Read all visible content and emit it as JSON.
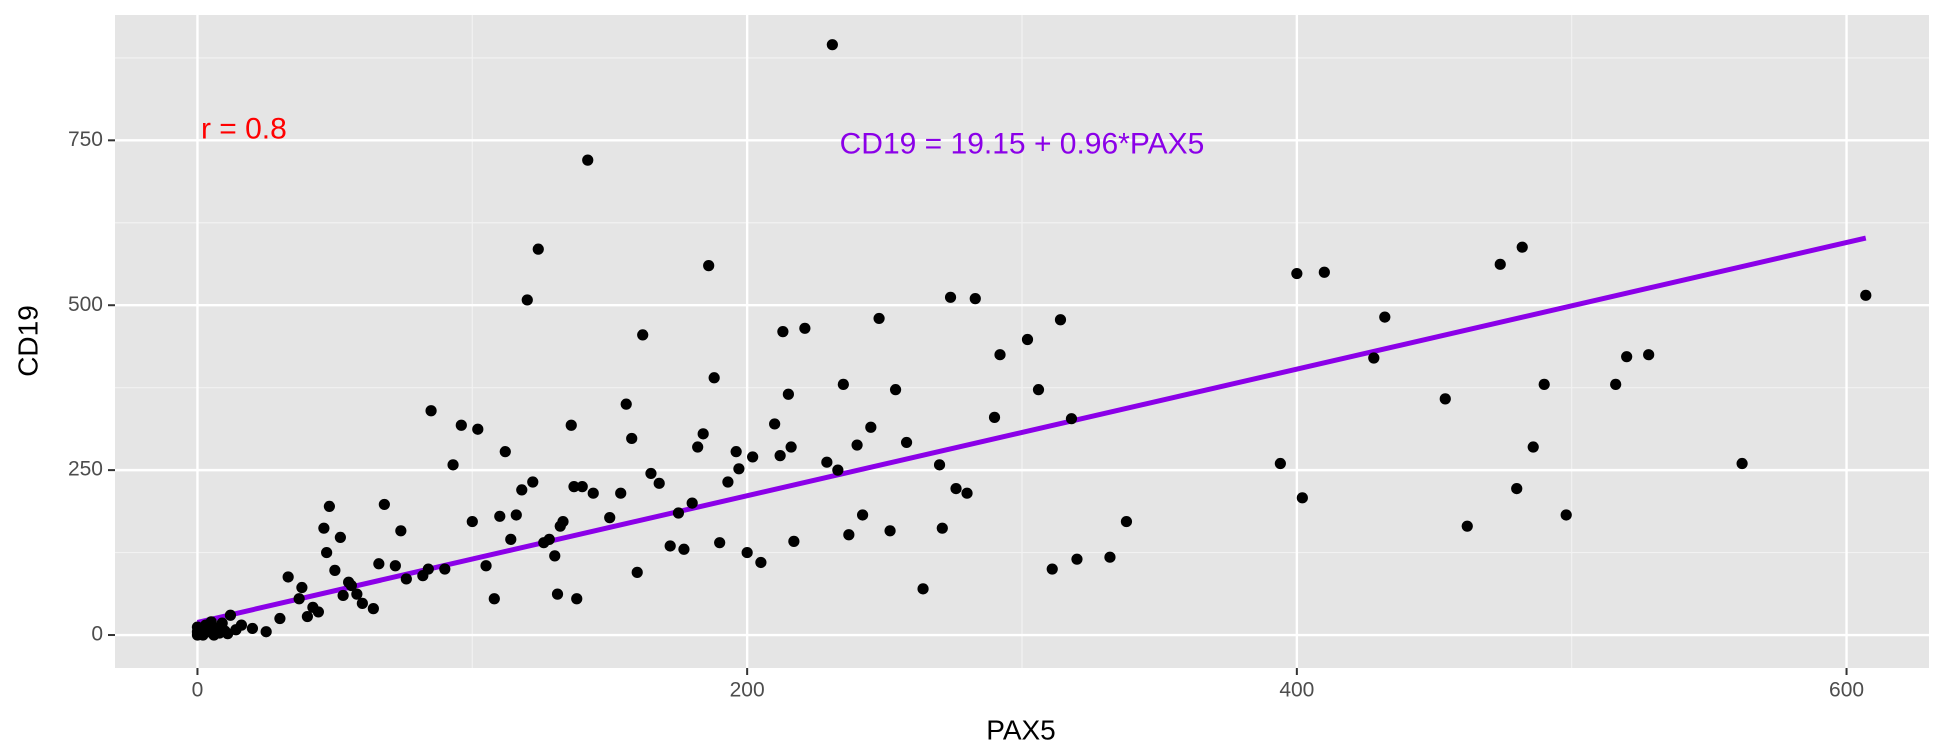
{
  "chart_data": {
    "type": "scatter",
    "xlabel": "PAX5",
    "ylabel": "CD19",
    "xlim": [
      -30,
      630
    ],
    "ylim": [
      -50,
      940
    ],
    "x_ticks": [
      0,
      200,
      400,
      600
    ],
    "y_ticks": [
      0,
      250,
      500,
      750
    ],
    "x_tick_labels": [
      "0",
      "200",
      "400",
      "600"
    ],
    "y_tick_labels": [
      "0",
      "250",
      "500",
      "750"
    ],
    "grid": true,
    "background": "#e5e5e5",
    "point_color": "#000000",
    "annotations": {
      "correlation": {
        "text": "r = 0.8",
        "color": "#ff0000",
        "x": 10,
        "y": 765
      },
      "equation": {
        "text": "CD19 = 19.15 + 0.96*PAX5",
        "color": "#8b00e8",
        "x": 300,
        "y": 742
      }
    },
    "regression": {
      "intercept": 19.15,
      "slope": 0.96,
      "x_range": [
        0,
        607
      ],
      "color": "#8b00e8"
    },
    "points": [
      [
        0,
        0
      ],
      [
        0,
        5
      ],
      [
        0,
        12
      ],
      [
        1,
        3
      ],
      [
        2,
        0
      ],
      [
        2,
        8
      ],
      [
        3,
        15
      ],
      [
        4,
        5
      ],
      [
        5,
        20
      ],
      [
        6,
        0
      ],
      [
        7,
        10
      ],
      [
        8,
        3
      ],
      [
        9,
        18
      ],
      [
        10,
        6
      ],
      [
        11,
        2
      ],
      [
        12,
        30
      ],
      [
        14,
        8
      ],
      [
        16,
        15
      ],
      [
        20,
        10
      ],
      [
        25,
        5
      ],
      [
        30,
        25
      ],
      [
        33,
        88
      ],
      [
        37,
        55
      ],
      [
        38,
        72
      ],
      [
        40,
        28
      ],
      [
        42,
        42
      ],
      [
        44,
        35
      ],
      [
        46,
        162
      ],
      [
        47,
        125
      ],
      [
        48,
        195
      ],
      [
        50,
        98
      ],
      [
        52,
        148
      ],
      [
        53,
        60
      ],
      [
        55,
        80
      ],
      [
        56,
        75
      ],
      [
        58,
        62
      ],
      [
        60,
        48
      ],
      [
        64,
        40
      ],
      [
        66,
        108
      ],
      [
        68,
        198
      ],
      [
        72,
        105
      ],
      [
        74,
        158
      ],
      [
        76,
        85
      ],
      [
        82,
        90
      ],
      [
        84,
        100
      ],
      [
        85,
        340
      ],
      [
        90,
        100
      ],
      [
        93,
        258
      ],
      [
        96,
        318
      ],
      [
        100,
        172
      ],
      [
        102,
        312
      ],
      [
        105,
        105
      ],
      [
        108,
        55
      ],
      [
        110,
        180
      ],
      [
        112,
        278
      ],
      [
        114,
        145
      ],
      [
        116,
        182
      ],
      [
        118,
        220
      ],
      [
        120,
        508
      ],
      [
        122,
        232
      ],
      [
        124,
        585
      ],
      [
        126,
        140
      ],
      [
        128,
        145
      ],
      [
        130,
        120
      ],
      [
        131,
        62
      ],
      [
        132,
        165
      ],
      [
        133,
        172
      ],
      [
        136,
        318
      ],
      [
        137,
        225
      ],
      [
        138,
        55
      ],
      [
        140,
        225
      ],
      [
        142,
        720
      ],
      [
        144,
        215
      ],
      [
        150,
        178
      ],
      [
        154,
        215
      ],
      [
        156,
        350
      ],
      [
        158,
        298
      ],
      [
        160,
        95
      ],
      [
        162,
        455
      ],
      [
        165,
        245
      ],
      [
        168,
        230
      ],
      [
        172,
        135
      ],
      [
        175,
        185
      ],
      [
        177,
        130
      ],
      [
        180,
        200
      ],
      [
        182,
        285
      ],
      [
        184,
        305
      ],
      [
        186,
        560
      ],
      [
        188,
        390
      ],
      [
        190,
        140
      ],
      [
        193,
        232
      ],
      [
        196,
        278
      ],
      [
        197,
        252
      ],
      [
        200,
        125
      ],
      [
        202,
        270
      ],
      [
        205,
        110
      ],
      [
        210,
        320
      ],
      [
        212,
        272
      ],
      [
        213,
        460
      ],
      [
        215,
        365
      ],
      [
        216,
        285
      ],
      [
        217,
        142
      ],
      [
        221,
        465
      ],
      [
        229,
        262
      ],
      [
        231,
        895
      ],
      [
        233,
        250
      ],
      [
        235,
        380
      ],
      [
        237,
        152
      ],
      [
        240,
        288
      ],
      [
        242,
        182
      ],
      [
        245,
        315
      ],
      [
        248,
        480
      ],
      [
        252,
        158
      ],
      [
        254,
        372
      ],
      [
        258,
        292
      ],
      [
        264,
        70
      ],
      [
        270,
        258
      ],
      [
        271,
        162
      ],
      [
        274,
        512
      ],
      [
        276,
        222
      ],
      [
        280,
        215
      ],
      [
        283,
        510
      ],
      [
        290,
        330
      ],
      [
        292,
        425
      ],
      [
        302,
        448
      ],
      [
        306,
        372
      ],
      [
        311,
        100
      ],
      [
        314,
        478
      ],
      [
        318,
        328
      ],
      [
        320,
        115
      ],
      [
        332,
        118
      ],
      [
        338,
        172
      ],
      [
        394,
        260
      ],
      [
        400,
        548
      ],
      [
        402,
        208
      ],
      [
        410,
        550
      ],
      [
        428,
        420
      ],
      [
        432,
        482
      ],
      [
        454,
        358
      ],
      [
        462,
        165
      ],
      [
        474,
        562
      ],
      [
        480,
        222
      ],
      [
        482,
        588
      ],
      [
        486,
        285
      ],
      [
        490,
        380
      ],
      [
        498,
        182
      ],
      [
        516,
        380
      ],
      [
        520,
        422
      ],
      [
        528,
        425
      ],
      [
        562,
        260
      ],
      [
        607,
        515
      ]
    ]
  }
}
